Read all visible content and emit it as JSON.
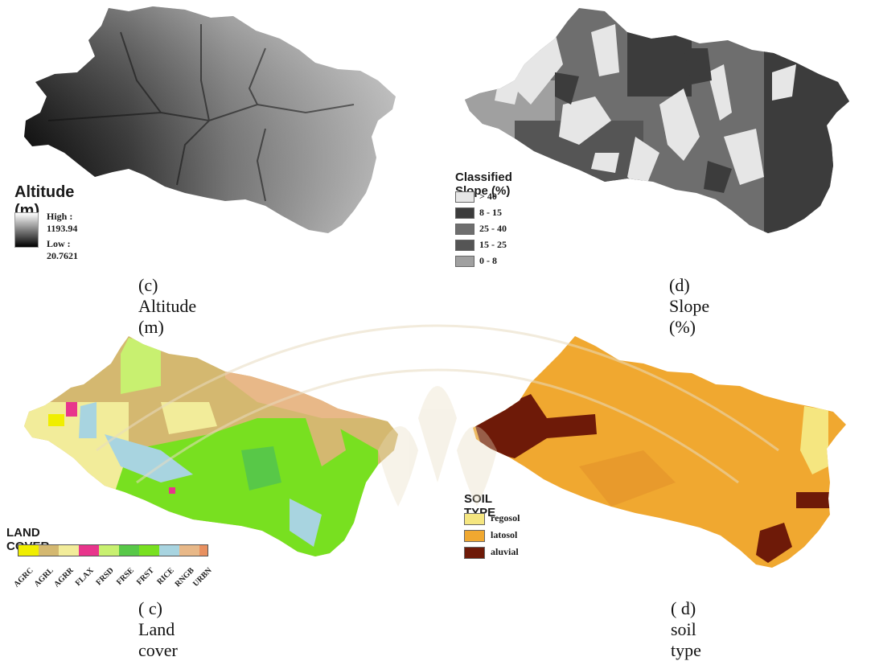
{
  "altitude_panel": {
    "legend_title": "Altitude (m)",
    "high_label": "High : 1193.94",
    "low_label": "Low : 20.7621",
    "caption": "(c)   Altitude (m)"
  },
  "slope_panel": {
    "legend_title": "Classified Slope (%)",
    "classes": [
      {
        "label": "> 40",
        "color": "#e6e6e6"
      },
      {
        "label": "8 - 15",
        "color": "#3c3c3c"
      },
      {
        "label": "25 - 40",
        "color": "#6e6e6e"
      },
      {
        "label": "15 - 25",
        "color": "#555555"
      },
      {
        "label": "0 - 8",
        "color": "#a0a0a0"
      }
    ],
    "caption": "(d) Slope (%)"
  },
  "landcover_panel": {
    "legend_title": "LAND COVER",
    "classes": [
      {
        "label": "AGRC",
        "color": "#f0ee00"
      },
      {
        "label": "AGRL",
        "color": "#d4b870"
      },
      {
        "label": "AGRR",
        "color": "#f2ec9a"
      },
      {
        "label": "FLAX",
        "color": "#e8358c"
      },
      {
        "label": "FRSD",
        "color": "#c8f070"
      },
      {
        "label": "FRSE",
        "color": "#58c848"
      },
      {
        "label": "FRST",
        "color": "#78e020"
      },
      {
        "label": "RICE",
        "color": "#a8d4e0"
      },
      {
        "label": "RNGB",
        "color": "#e8b888"
      },
      {
        "label": "URBN",
        "color": "#e89060"
      }
    ],
    "caption": "( c) Land cover"
  },
  "soil_panel": {
    "legend_title": "SOIL TYPE",
    "classes": [
      {
        "label": "regosol",
        "color": "#f5e680"
      },
      {
        "label": "latosol",
        "color": "#f0a830"
      },
      {
        "label": "aluvial",
        "color": "#6e1a08"
      }
    ],
    "caption": "( d) soil type"
  },
  "colors": {
    "watermark": "#e8dcc0"
  }
}
